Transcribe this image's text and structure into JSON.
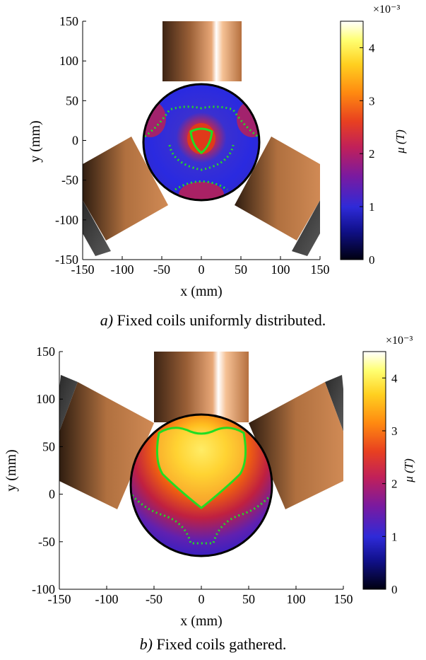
{
  "chart_data": [
    {
      "type": "heatmap",
      "caption_label": "a)",
      "caption_text": "Fixed coils uniformly distributed.",
      "xlabel": "x (mm)",
      "ylabel": "y (mm)",
      "xlim": [
        -150,
        150
      ],
      "ylim": [
        -150,
        150
      ],
      "xticks": [
        "-150",
        "-100",
        "-50",
        "0",
        "50",
        "100",
        "150"
      ],
      "yticks": [
        "150",
        "100",
        "50",
        "0",
        "-50",
        "-100",
        "-150"
      ],
      "colorbar": {
        "label": "μ (T)",
        "exponent": "×10⁻³",
        "range": [
          0,
          4.5
        ],
        "ticks": [
          "0",
          "1",
          "2",
          "3",
          "4"
        ],
        "colormap": "hot-blue"
      }
    },
    {
      "type": "heatmap",
      "caption_label": "b)",
      "caption_text": "Fixed coils gathered.",
      "xlabel": "x (mm)",
      "ylabel": "y (mm)",
      "xlim": [
        -150,
        150
      ],
      "ylim": [
        -100,
        150
      ],
      "xticks": [
        "-150",
        "-100",
        "-50",
        "0",
        "50",
        "100",
        "150"
      ],
      "yticks": [
        "150",
        "100",
        "50",
        "0",
        "-50",
        "-100"
      ],
      "colorbar": {
        "label": "μ (T)",
        "exponent": "×10⁻³",
        "range": [
          0,
          4.5
        ],
        "ticks": [
          "0",
          "1",
          "2",
          "3",
          "4"
        ],
        "colormap": "hot-blue"
      }
    }
  ]
}
